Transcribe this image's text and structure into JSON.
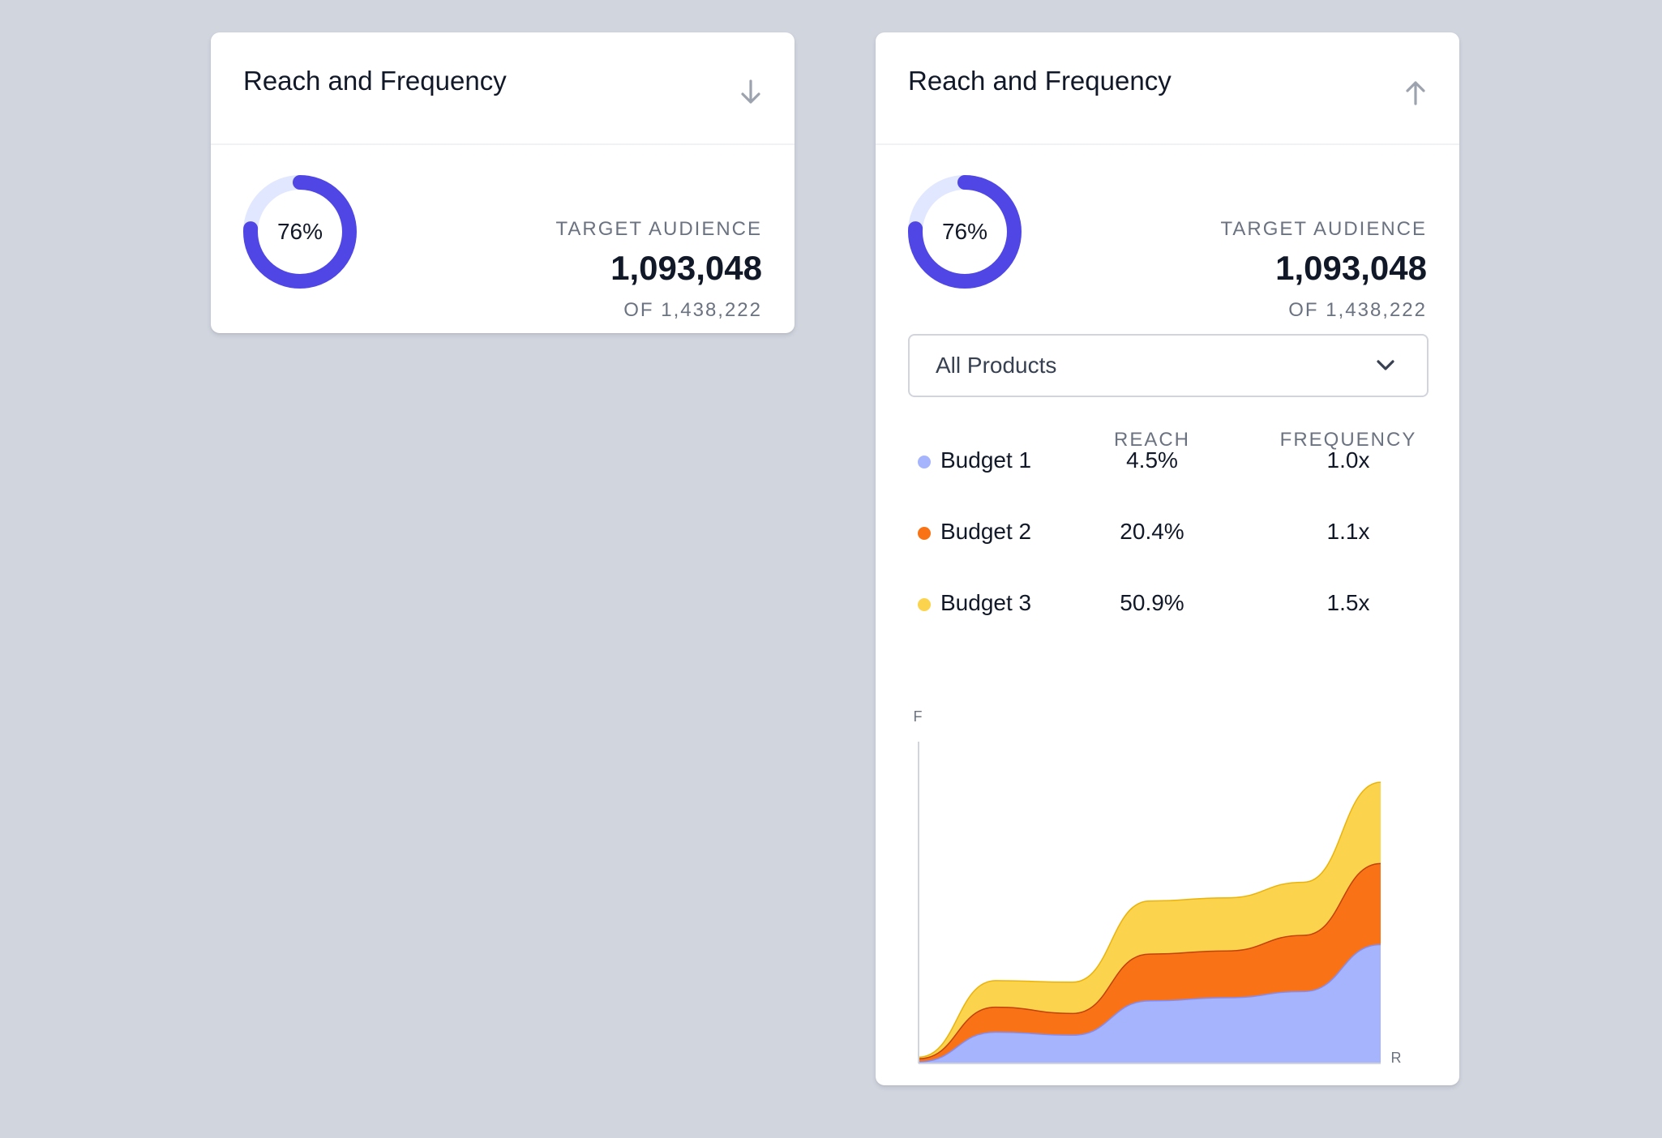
{
  "cards": [
    {
      "title": "Reach and Frequency",
      "toggle_icon": "arrow-down-icon",
      "donut_percent": 76,
      "donut_label": "76%",
      "stat_label": "TARGET AUDIENCE",
      "stat_value": "1,093,048",
      "stat_total": "OF 1,438,222"
    },
    {
      "title": "Reach and Frequency",
      "toggle_icon": "arrow-up-icon",
      "donut_percent": 76,
      "donut_label": "76%",
      "stat_label": "TARGET AUDIENCE",
      "stat_value": "1,093,048",
      "stat_total": "OF 1,438,222",
      "product_select": {
        "value": "All Products",
        "icon": "chevron-down-icon"
      },
      "budget_table": {
        "headers": [
          "REACH",
          "FREQUENCY"
        ],
        "rows": [
          {
            "name": "Budget 1",
            "reach": "4.5%",
            "frequency": "1.0x",
            "color": "#a5b4fc"
          },
          {
            "name": "Budget 2",
            "reach": "20.4%",
            "frequency": "1.1x",
            "color": "#f97316"
          },
          {
            "name": "Budget 3",
            "reach": "50.9%",
            "frequency": "1.5x",
            "color": "#fcd34d"
          }
        ]
      }
    }
  ],
  "colors": {
    "donut_fill": "#4f46e5",
    "donut_track": "#e0e7ff",
    "budget1": "#a5b4fc",
    "budget2": "#f97316",
    "budget3": "#fcd34d"
  },
  "chart_data": {
    "type": "area",
    "stacked": true,
    "xlabel": "R",
    "ylabel": "F",
    "x": [
      0,
      1,
      2,
      3,
      4,
      5,
      6
    ],
    "series": [
      {
        "name": "Budget 1",
        "color": "#a5b4fc",
        "values": [
          0.05,
          1.0,
          0.9,
          2.0,
          2.1,
          2.3,
          3.8
        ]
      },
      {
        "name": "Budget 2",
        "color": "#f97316",
        "values": [
          0.1,
          0.8,
          0.7,
          1.5,
          1.5,
          1.8,
          2.6
        ]
      },
      {
        "name": "Budget 3",
        "color": "#fcd34d",
        "values": [
          0.05,
          0.85,
          1.0,
          1.7,
          1.7,
          1.7,
          2.6
        ]
      }
    ],
    "ylim": [
      0,
      10.3
    ],
    "grid": false
  }
}
